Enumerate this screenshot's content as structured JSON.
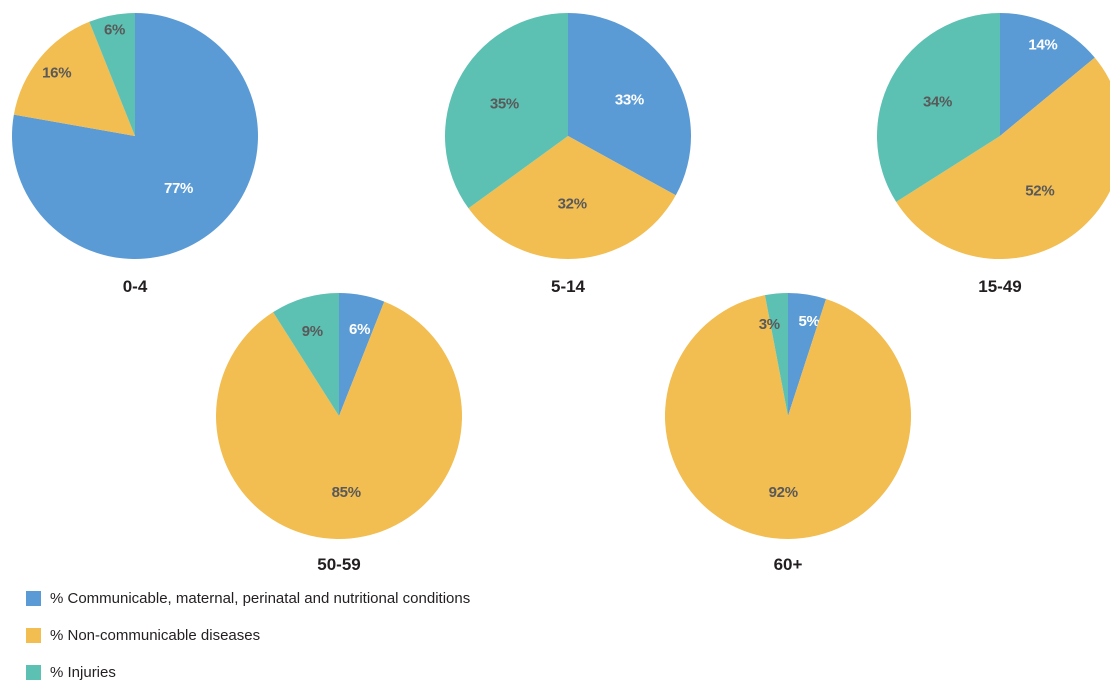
{
  "colors": {
    "communicable": "#5b9bd5",
    "noncommunicable": "#f2bd51",
    "injuries": "#5cc1b3",
    "label_dark": "#595959",
    "label_light": "#ffffff"
  },
  "chart_data": [
    {
      "type": "pie",
      "title": "0-4",
      "categories": [
        "% Communicable, maternal, perinatal and nutritional conditions",
        "% Non-communicable diseases",
        "% Injuries"
      ],
      "values": [
        77,
        16,
        6
      ],
      "labels": [
        "77%",
        "16%",
        "6%"
      ]
    },
    {
      "type": "pie",
      "title": "5-14",
      "categories": [
        "% Communicable, maternal, perinatal and nutritional conditions",
        "% Non-communicable diseases",
        "% Injuries"
      ],
      "values": [
        33,
        32,
        35
      ],
      "labels": [
        "33%",
        "32%",
        "35%"
      ]
    },
    {
      "type": "pie",
      "title": "15-49",
      "categories": [
        "% Communicable, maternal, perinatal and nutritional conditions",
        "% Non-communicable diseases",
        "% Injuries"
      ],
      "values": [
        14,
        52,
        34
      ],
      "labels": [
        "14%",
        "52%",
        "34%"
      ]
    },
    {
      "type": "pie",
      "title": "50-59",
      "categories": [
        "% Communicable, maternal, perinatal and nutritional conditions",
        "% Non-communicable diseases",
        "% Injuries"
      ],
      "values": [
        6,
        85,
        9
      ],
      "labels": [
        "6%",
        "85%",
        "9%"
      ]
    },
    {
      "type": "pie",
      "title": "60+",
      "categories": [
        "% Communicable, maternal, perinatal and nutritional conditions",
        "% Non-communicable diseases",
        "% Injuries"
      ],
      "values": [
        5,
        92,
        3
      ],
      "labels": [
        "5%",
        "92%",
        "3%"
      ]
    }
  ],
  "legend": {
    "placement": "bottom-left",
    "items": [
      {
        "key": "communicable",
        "label": "% Communicable, maternal, perinatal and nutritional conditions"
      },
      {
        "key": "noncommunicable",
        "label": "% Non-communicable diseases"
      },
      {
        "key": "injuries",
        "label": "% Injuries"
      }
    ]
  }
}
